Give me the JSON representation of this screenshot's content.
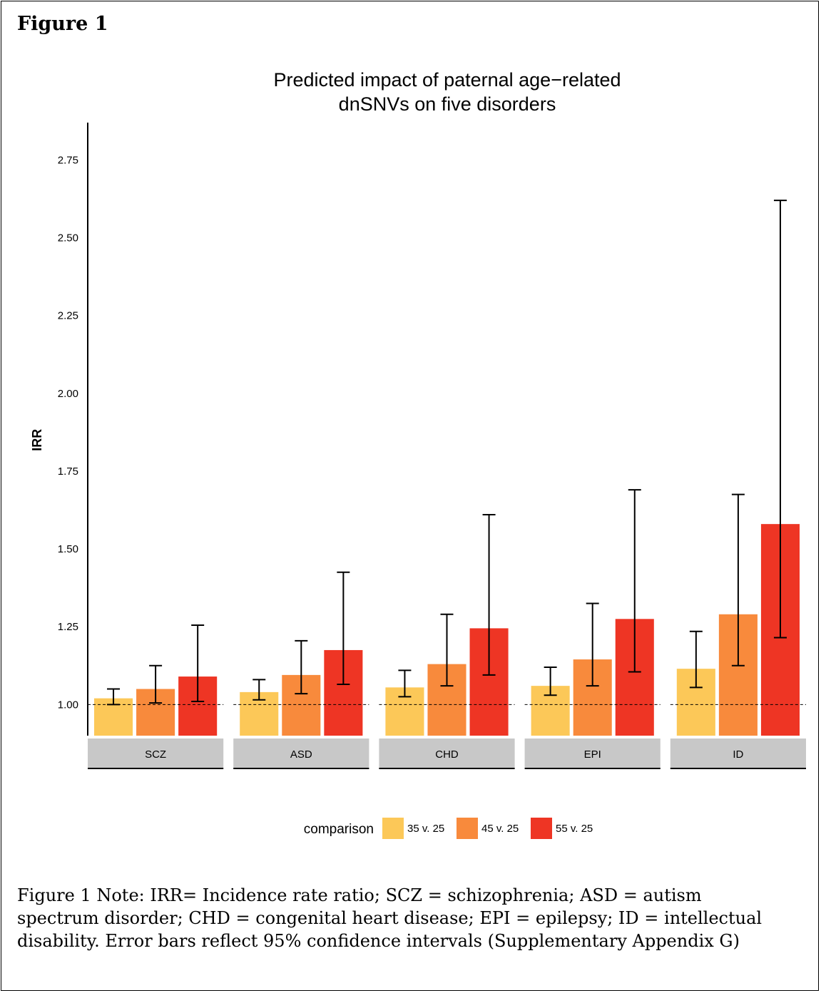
{
  "figure_label": "Figure 1",
  "note": "Figure 1 Note: IRR= Incidence rate ratio; SCZ = schizophrenia; ASD = autism spectrum disorder; CHD = congenital heart disease; EPI = epilepsy; ID = intellectual disability. Error bars reflect 95% confidence intervals (Supplementary Appendix G)",
  "chart_data": {
    "type": "bar",
    "title": [
      "Predicted impact of paternal age−related",
      "dnSNVs on five disorders"
    ],
    "ylabel": "IRR",
    "xlabel": "",
    "categories": [
      "SCZ",
      "ASD",
      "CHD",
      "EPI",
      "ID"
    ],
    "ylim": [
      0.9,
      2.87
    ],
    "yticks": [
      1.0,
      1.25,
      1.5,
      1.75,
      2.0,
      2.25,
      2.5,
      2.75
    ],
    "ytick_labels": [
      "1.00",
      "1.25",
      "1.50",
      "1.75",
      "2.00",
      "2.25",
      "2.50",
      "2.75"
    ],
    "reference_line": 1.0,
    "grid": false,
    "legend": {
      "title": "comparison",
      "position": "bottom"
    },
    "series": [
      {
        "name": "35 v. 25",
        "color": "#FCC858",
        "values": [
          1.02,
          1.04,
          1.055,
          1.06,
          1.115
        ],
        "ci_low": [
          1.0,
          1.015,
          1.025,
          1.03,
          1.055
        ],
        "ci_high": [
          1.05,
          1.08,
          1.11,
          1.12,
          1.235
        ]
      },
      {
        "name": "45 v. 25",
        "color": "#F88A3C",
        "values": [
          1.05,
          1.095,
          1.13,
          1.145,
          1.29
        ],
        "ci_low": [
          1.005,
          1.035,
          1.06,
          1.06,
          1.125
        ],
        "ci_high": [
          1.125,
          1.205,
          1.29,
          1.325,
          1.675
        ]
      },
      {
        "name": "55 v. 25",
        "color": "#EE3524",
        "values": [
          1.09,
          1.175,
          1.245,
          1.275,
          1.58
        ],
        "ci_low": [
          1.01,
          1.065,
          1.095,
          1.105,
          1.215
        ],
        "ci_high": [
          1.255,
          1.425,
          1.61,
          1.69,
          2.62
        ]
      }
    ]
  }
}
